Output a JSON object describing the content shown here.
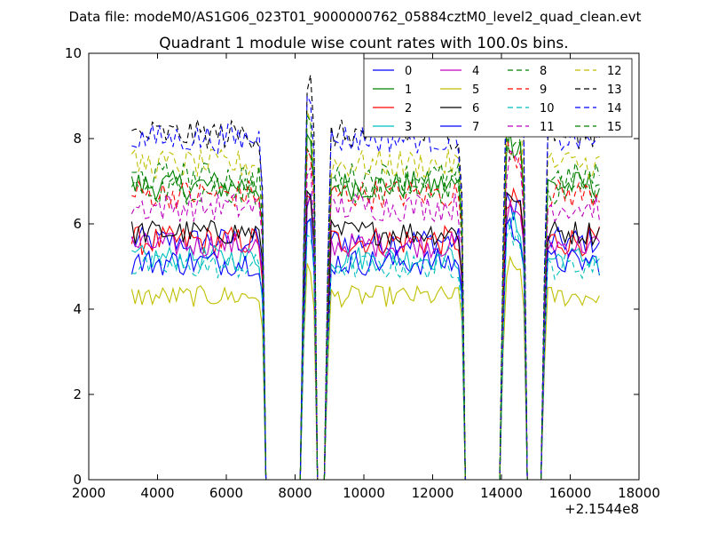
{
  "figure": {
    "suptitle": "Data file: modeM0/AS1G06_023T01_9000000762_05884cztM0_level2_quad_clean.evt"
  },
  "chart_data": {
    "type": "line",
    "title": "Quadrant 1 module wise count rates with 100.0s bins.",
    "xlabel": "",
    "ylabel": "",
    "xlim": [
      2000,
      18000
    ],
    "ylim": [
      0,
      10
    ],
    "x_offset_label": "+2.1544e8",
    "xticks": [
      "2000",
      "4000",
      "6000",
      "8000",
      "10000",
      "12000",
      "14000",
      "16000",
      "18000"
    ],
    "yticks": [
      "0",
      "2",
      "4",
      "6",
      "8",
      "10"
    ],
    "grid": false,
    "legend_position": "top-right",
    "segments": [
      [
        3250,
        7050
      ],
      [
        8200,
        8550
      ],
      [
        8900,
        12850
      ],
      [
        14050,
        14650
      ],
      [
        15250,
        16850
      ]
    ],
    "series": [
      {
        "name": "0",
        "color": "#0000ff",
        "style": "solid",
        "level": 5.6,
        "noise": 0.32
      },
      {
        "name": "1",
        "color": "#008000",
        "style": "solid",
        "level": 6.9,
        "noise": 0.35
      },
      {
        "name": "2",
        "color": "#ff0000",
        "style": "solid",
        "level": 5.6,
        "noise": 0.35
      },
      {
        "name": "3",
        "color": "#00bfbf",
        "style": "solid",
        "level": 5.2,
        "noise": 0.3
      },
      {
        "name": "4",
        "color": "#bf00bf",
        "style": "solid",
        "level": 5.5,
        "noise": 0.3
      },
      {
        "name": "5",
        "color": "#bfbf00",
        "style": "solid",
        "level": 4.3,
        "noise": 0.25
      },
      {
        "name": "6",
        "color": "#000000",
        "style": "solid",
        "level": 5.8,
        "noise": 0.3
      },
      {
        "name": "7",
        "color": "#0000ff",
        "style": "solid",
        "level": 5.1,
        "noise": 0.32
      },
      {
        "name": "8",
        "color": "#008000",
        "style": "dashed",
        "level": 6.8,
        "noise": 0.35
      },
      {
        "name": "9",
        "color": "#ff0000",
        "style": "dashed",
        "level": 6.7,
        "noise": 0.35
      },
      {
        "name": "10",
        "color": "#00bfbf",
        "style": "dashed",
        "level": 5.0,
        "noise": 0.3
      },
      {
        "name": "11",
        "color": "#bf00bf",
        "style": "dashed",
        "level": 6.4,
        "noise": 0.35
      },
      {
        "name": "12",
        "color": "#bfbf00",
        "style": "dashed",
        "level": 7.4,
        "noise": 0.35
      },
      {
        "name": "13",
        "color": "#000000",
        "style": "dashed",
        "level": 8.1,
        "noise": 0.35
      },
      {
        "name": "14",
        "color": "#0000ff",
        "style": "dashed",
        "level": 8.0,
        "noise": 0.35
      },
      {
        "name": "15",
        "color": "#008000",
        "style": "dashed",
        "level": 7.1,
        "noise": 0.35
      }
    ]
  }
}
